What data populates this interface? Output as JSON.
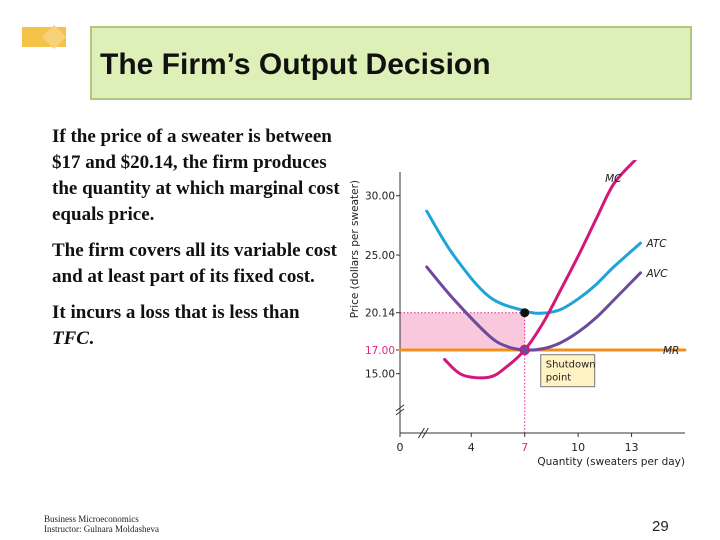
{
  "slide": {
    "title": "The Firm’s Output Decision",
    "paragraphs": [
      {
        "text": "If the price of a sweater is between $17 and $20.14, the firm produces the quantity at which marginal cost equals price."
      },
      {
        "text": "The firm covers all its variable cost and at least part of its fixed cost."
      },
      {
        "pre": "It incurs a loss that is  less than ",
        "em": "TFC",
        "post": "."
      }
    ],
    "footer_line1": "Business Microeconomics",
    "footer_line2": "Instructor: Gulnara Moldasheva",
    "page_number": "29",
    "colors": {
      "title_bg": "#dcf0b8",
      "logo": "#f5c24a"
    }
  },
  "chart_data": {
    "type": "line",
    "ylabel": "Price (dollars per sweater)",
    "xlabel": "Quantity (sweaters per day)",
    "x_ticks": [
      "0",
      "4",
      "7",
      "10",
      "13"
    ],
    "y_ticks": [
      "30.00",
      "25.00",
      "20.14",
      "17.00",
      "15.00"
    ],
    "y_tick_values": [
      30.0,
      25.0,
      20.14,
      17.0,
      15.0
    ],
    "xlim": [
      0,
      16
    ],
    "ylim": [
      10,
      32
    ],
    "y_axis_break": true,
    "series": [
      {
        "name": "MC",
        "color": "#d4187a",
        "x": [
          2.5,
          3.5,
          5,
          6,
          7,
          8,
          9,
          10,
          11,
          12,
          13.2
        ],
        "y": [
          16.2,
          14.9,
          14.7,
          15.6,
          17.0,
          19.2,
          22.0,
          24.9,
          28.0,
          31.0,
          33.0
        ]
      },
      {
        "name": "ATC",
        "color": "#1fa3d9",
        "x": [
          1.5,
          3,
          5,
          7,
          8,
          9,
          10,
          11,
          12,
          13.5
        ],
        "y": [
          28.7,
          25.0,
          21.5,
          20.3,
          20.1,
          20.4,
          21.3,
          22.5,
          24.0,
          26.0
        ]
      },
      {
        "name": "AVC",
        "color": "#6e4a9e",
        "x": [
          1.5,
          3,
          5,
          6,
          7,
          8,
          9,
          10,
          11,
          12,
          13.5
        ],
        "y": [
          24.0,
          21.3,
          18.2,
          17.3,
          17.0,
          17.1,
          17.6,
          18.5,
          19.7,
          21.2,
          23.5
        ]
      },
      {
        "name": "MR",
        "color": "#f0901c",
        "x": [
          0,
          16
        ],
        "y": [
          17.0,
          17.0
        ]
      }
    ],
    "price_level": 17.0,
    "threshold_price": 20.14,
    "output": 7,
    "loss_area": {
      "x": [
        0,
        7
      ],
      "y": [
        17.0,
        20.14
      ],
      "color": "#f9c8dc"
    },
    "points": [
      {
        "x": 7,
        "y": 20.14,
        "label": ""
      },
      {
        "x": 7,
        "y": 17.0,
        "label": "Shutdown point"
      }
    ],
    "annotation": {
      "line1": "Shutdown",
      "line2": "point"
    },
    "highlight_color": "#e8208c"
  }
}
